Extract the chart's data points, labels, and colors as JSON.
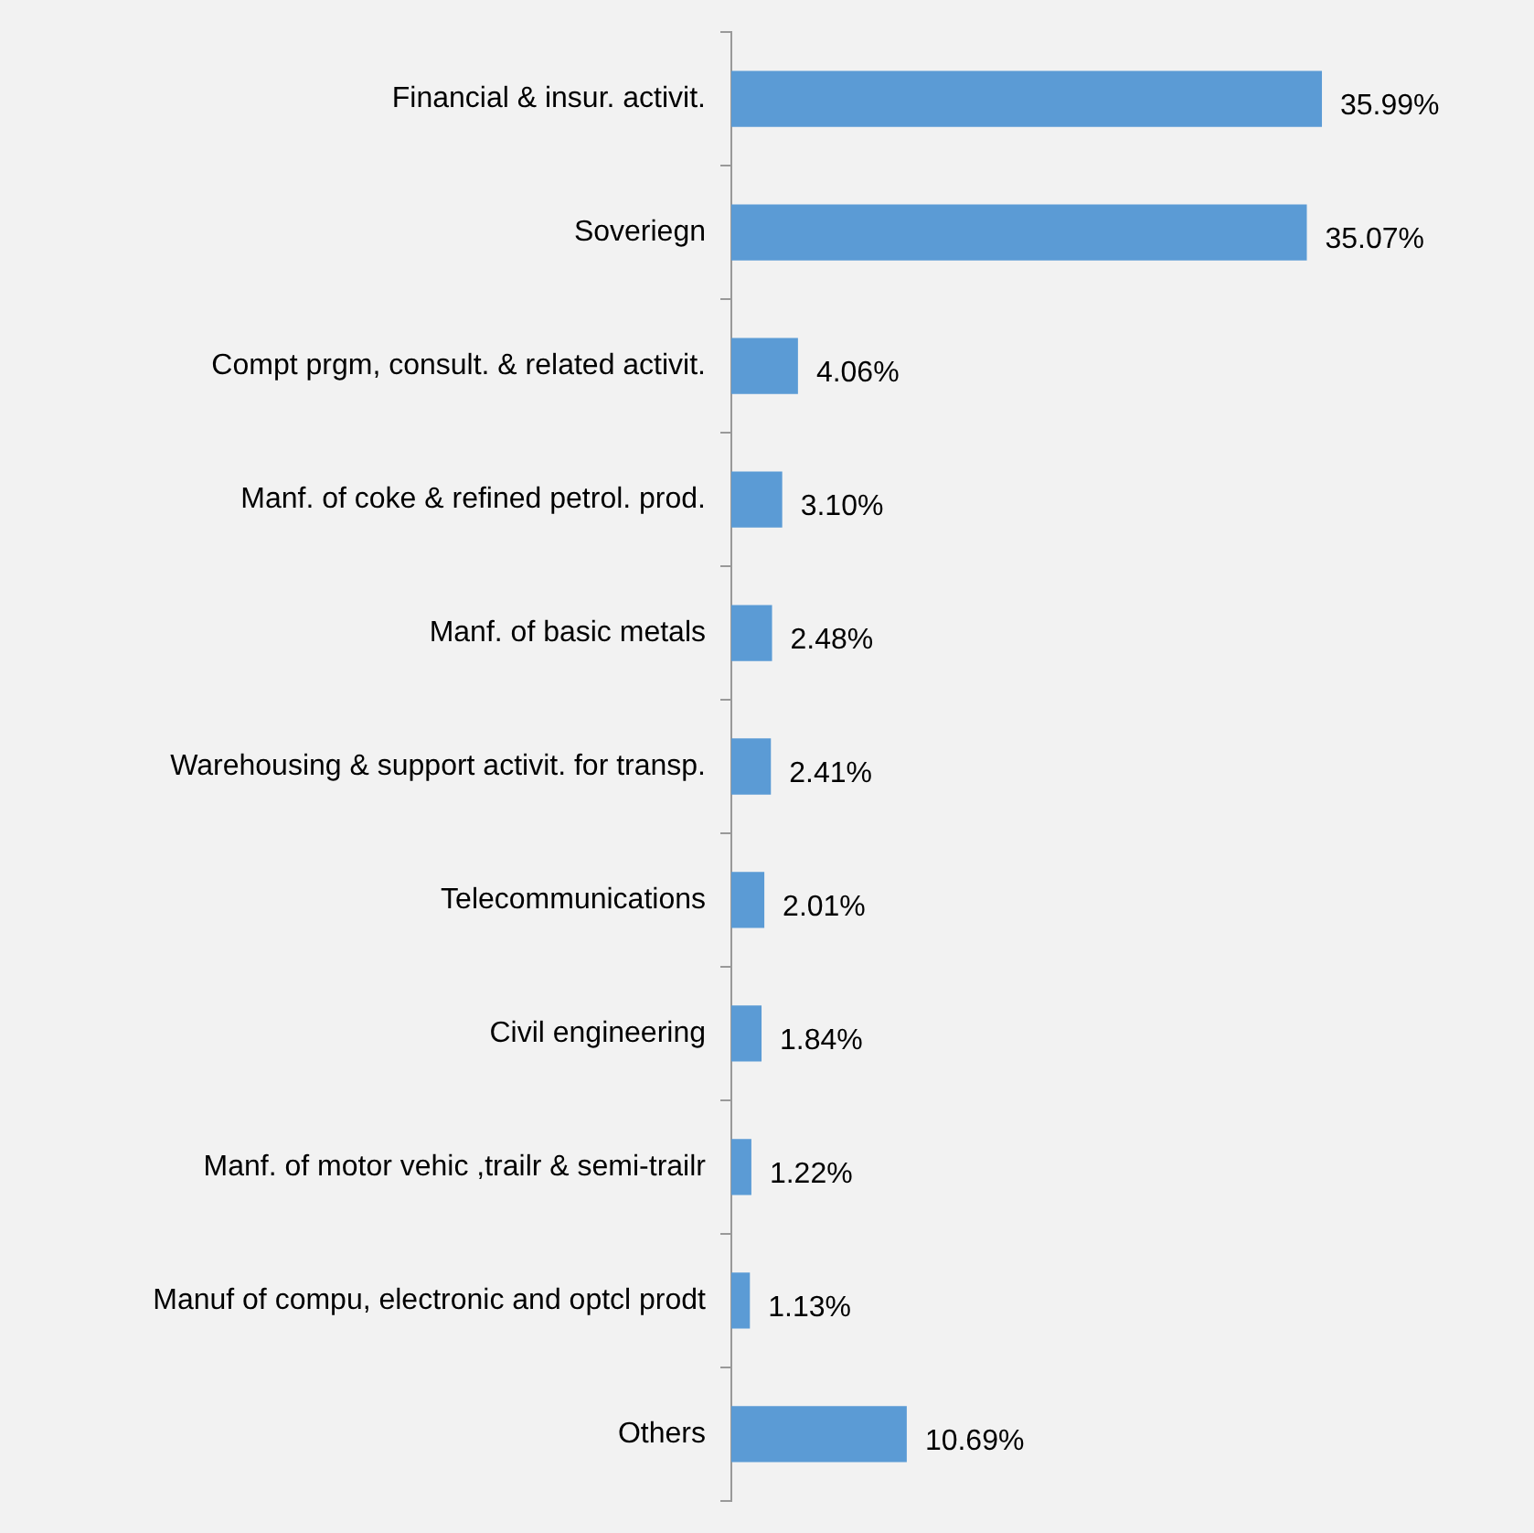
{
  "chart_data": {
    "type": "bar",
    "orientation": "horizontal",
    "color": "#5b9bd5",
    "categories": [
      "Financial & insur. activit.",
      "Soveriegn",
      "Compt prgm, consult. & related activit.",
      "Manf. of coke & refined petrol. prod.",
      "Manf. of basic metals",
      "Warehousing & support activit. for transp.",
      "Telecommunications",
      "Civil engineering",
      "Manf. of motor vehic ,trailr & semi-trailr",
      "Manuf of compu, electronic and optcl prodt",
      "Others"
    ],
    "values": [
      35.99,
      35.07,
      4.06,
      3.1,
      2.48,
      2.41,
      2.01,
      1.84,
      1.22,
      1.13,
      10.69
    ],
    "value_labels": [
      "35.99%",
      "35.07%",
      "4.06%",
      "3.10%",
      "2.48%",
      "2.41%",
      "2.01%",
      "1.84%",
      "1.22%",
      "1.13%",
      "10.69%"
    ],
    "legend": false,
    "grid": false
  }
}
